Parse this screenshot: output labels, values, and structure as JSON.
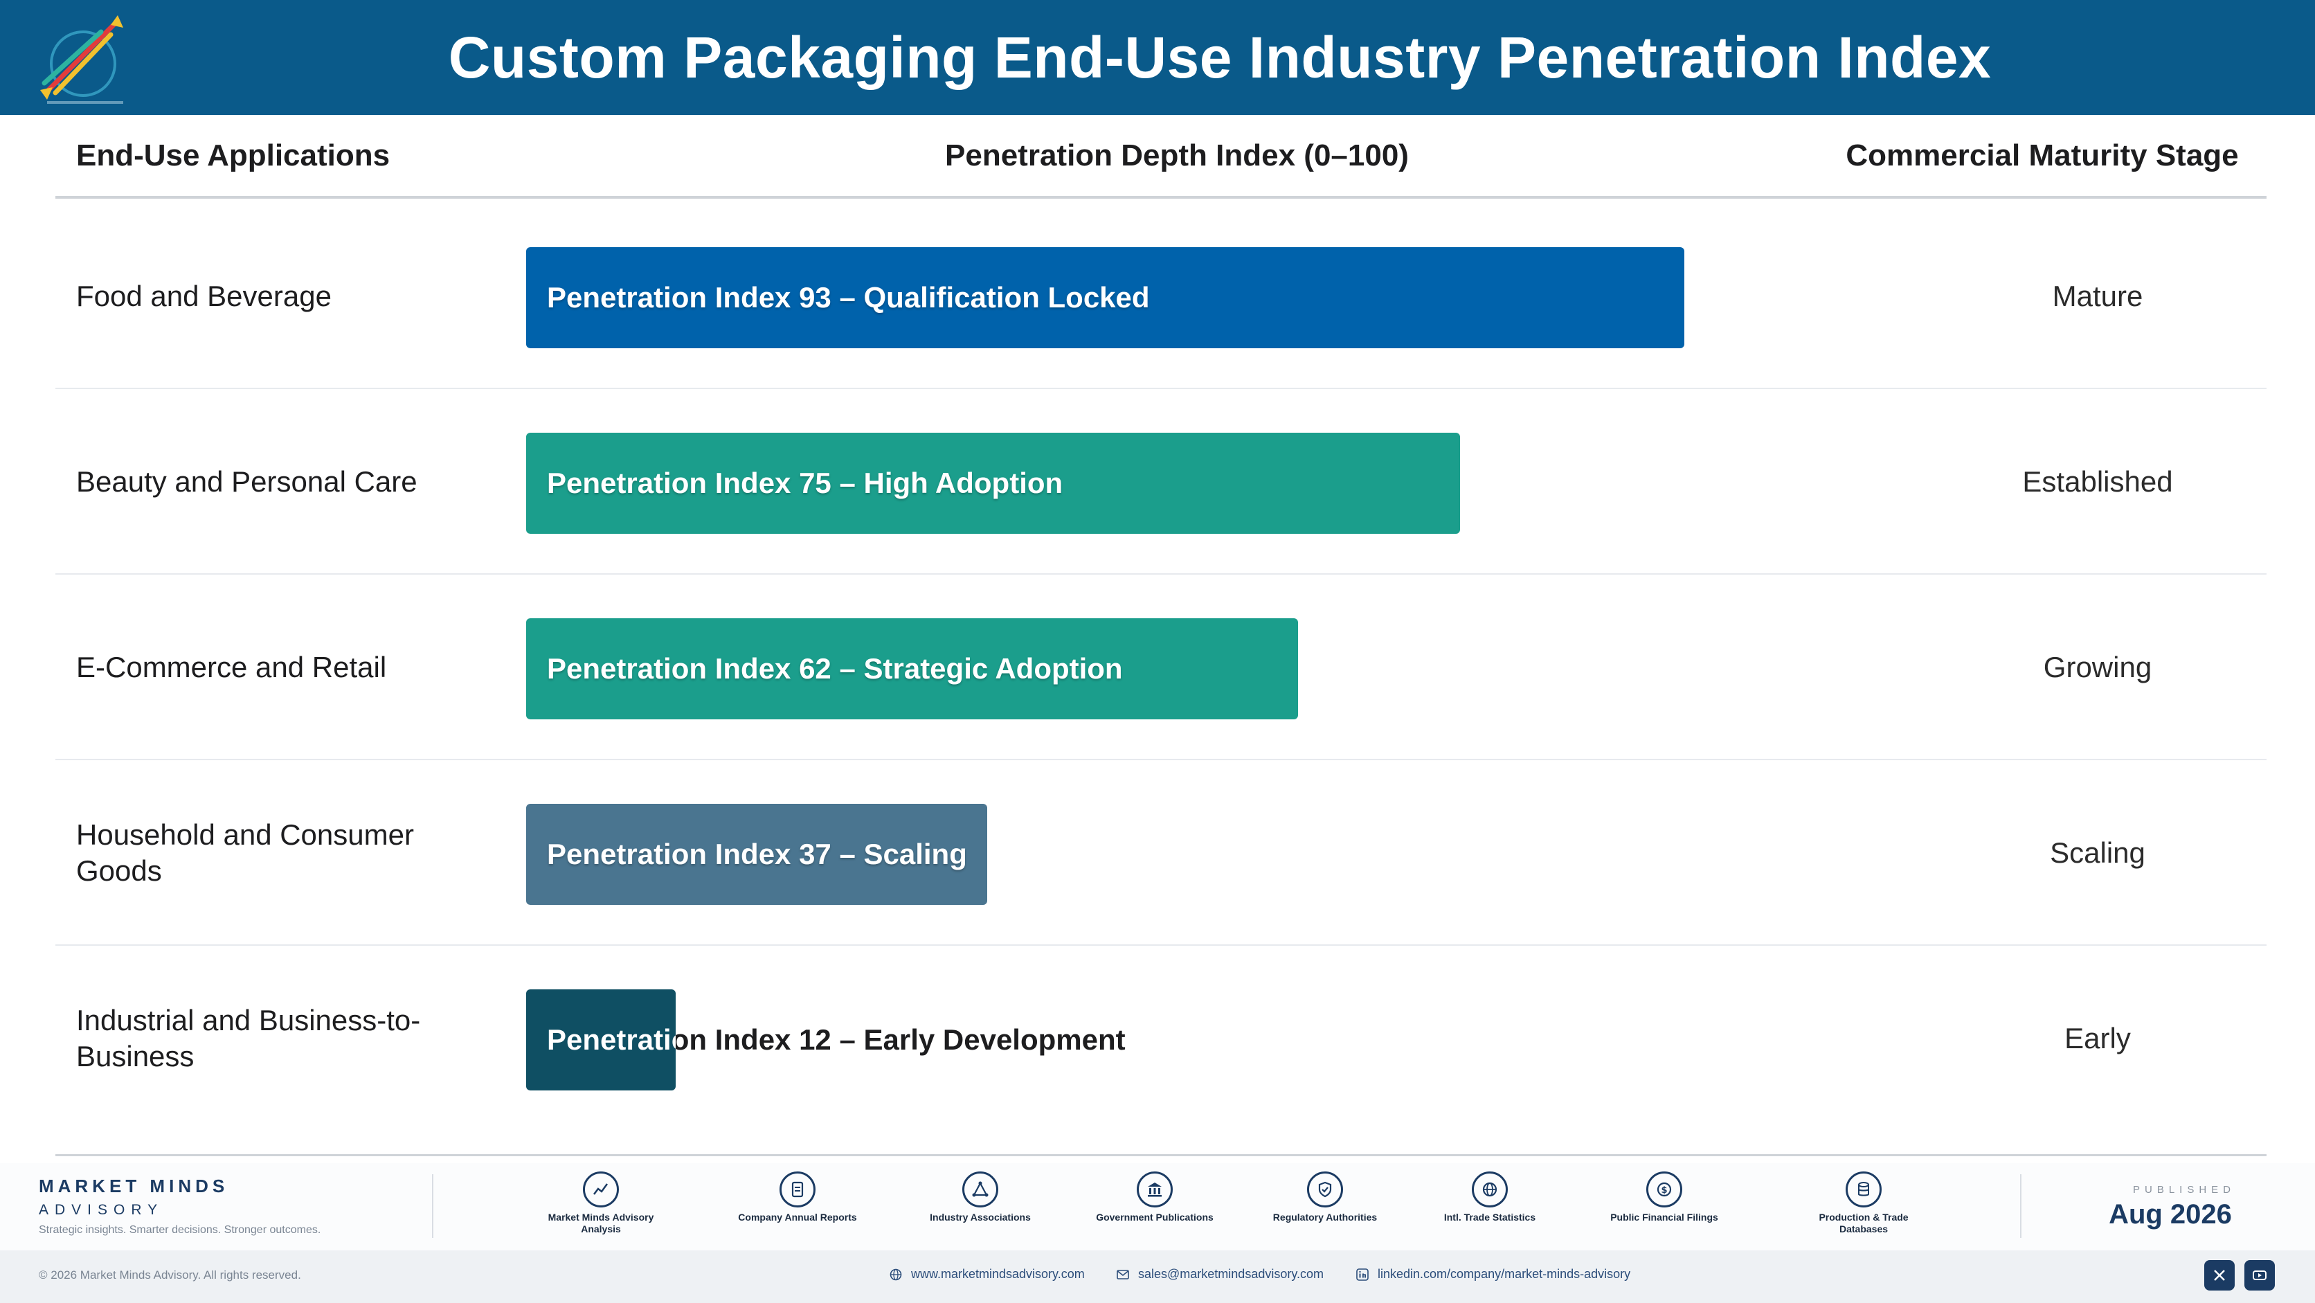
{
  "header": {
    "title": "Custom Packaging End-Use Industry Penetration Index",
    "logo_icon": "arrows-logo-icon"
  },
  "columns": {
    "applications": "End-Use Applications",
    "index": "Penetration Depth Index (0–100)",
    "stage": "Commercial Maturity Stage"
  },
  "chart_data": {
    "type": "bar",
    "orientation": "horizontal",
    "xlim": [
      0,
      100
    ],
    "categories": [
      "Food and Beverage",
      "Beauty and Personal Care",
      "E-Commerce and Retail",
      "Household and Consumer Goods",
      "Industrial and Business-to-Business"
    ],
    "values": [
      93,
      75,
      62,
      37,
      12
    ],
    "bar_labels": [
      "Penetration Index 93 – Qualification Locked",
      "Penetration Index 75 – High Adoption",
      "Penetration Index 62 – Strategic Adoption",
      "Penetration Index 37 – Scaling",
      "Penetration Index 12 – Early Development"
    ],
    "stages": [
      "Mature",
      "Established",
      "Growing",
      "Scaling",
      "Early"
    ],
    "colors": [
      "#0062ab",
      "#1b9e8c",
      "#1b9e8c",
      "#4a7590",
      "#0f4f63"
    ]
  },
  "footer": {
    "brand_name": "MARKET MINDS",
    "brand_sub": "ADVISORY",
    "brand_tagline": "Strategic insights. Smarter decisions. Stronger outcomes.",
    "sources": [
      {
        "label": "Market Minds Advisory Analysis",
        "icon": "chart-line-icon"
      },
      {
        "label": "Company Annual Reports",
        "icon": "document-icon"
      },
      {
        "label": "Industry Associations",
        "icon": "network-icon"
      },
      {
        "label": "Government Publications",
        "icon": "government-building-icon"
      },
      {
        "label": "Regulatory Authorities",
        "icon": "shield-check-icon"
      },
      {
        "label": "Intl. Trade Statistics",
        "icon": "globe-icon"
      },
      {
        "label": "Public Financial Filings",
        "icon": "dollar-coin-icon"
      },
      {
        "label": "Production & Trade Databases",
        "icon": "database-icon"
      }
    ],
    "published_label": "PUBLISHED",
    "published_date": "Aug 2026",
    "copyright": "© 2026 Market Minds Advisory. All rights reserved.",
    "website": "www.marketmindsadvisory.com",
    "email": "sales@marketmindsadvisory.com",
    "linkedin": "linkedin.com/company/market-minds-advisory"
  }
}
